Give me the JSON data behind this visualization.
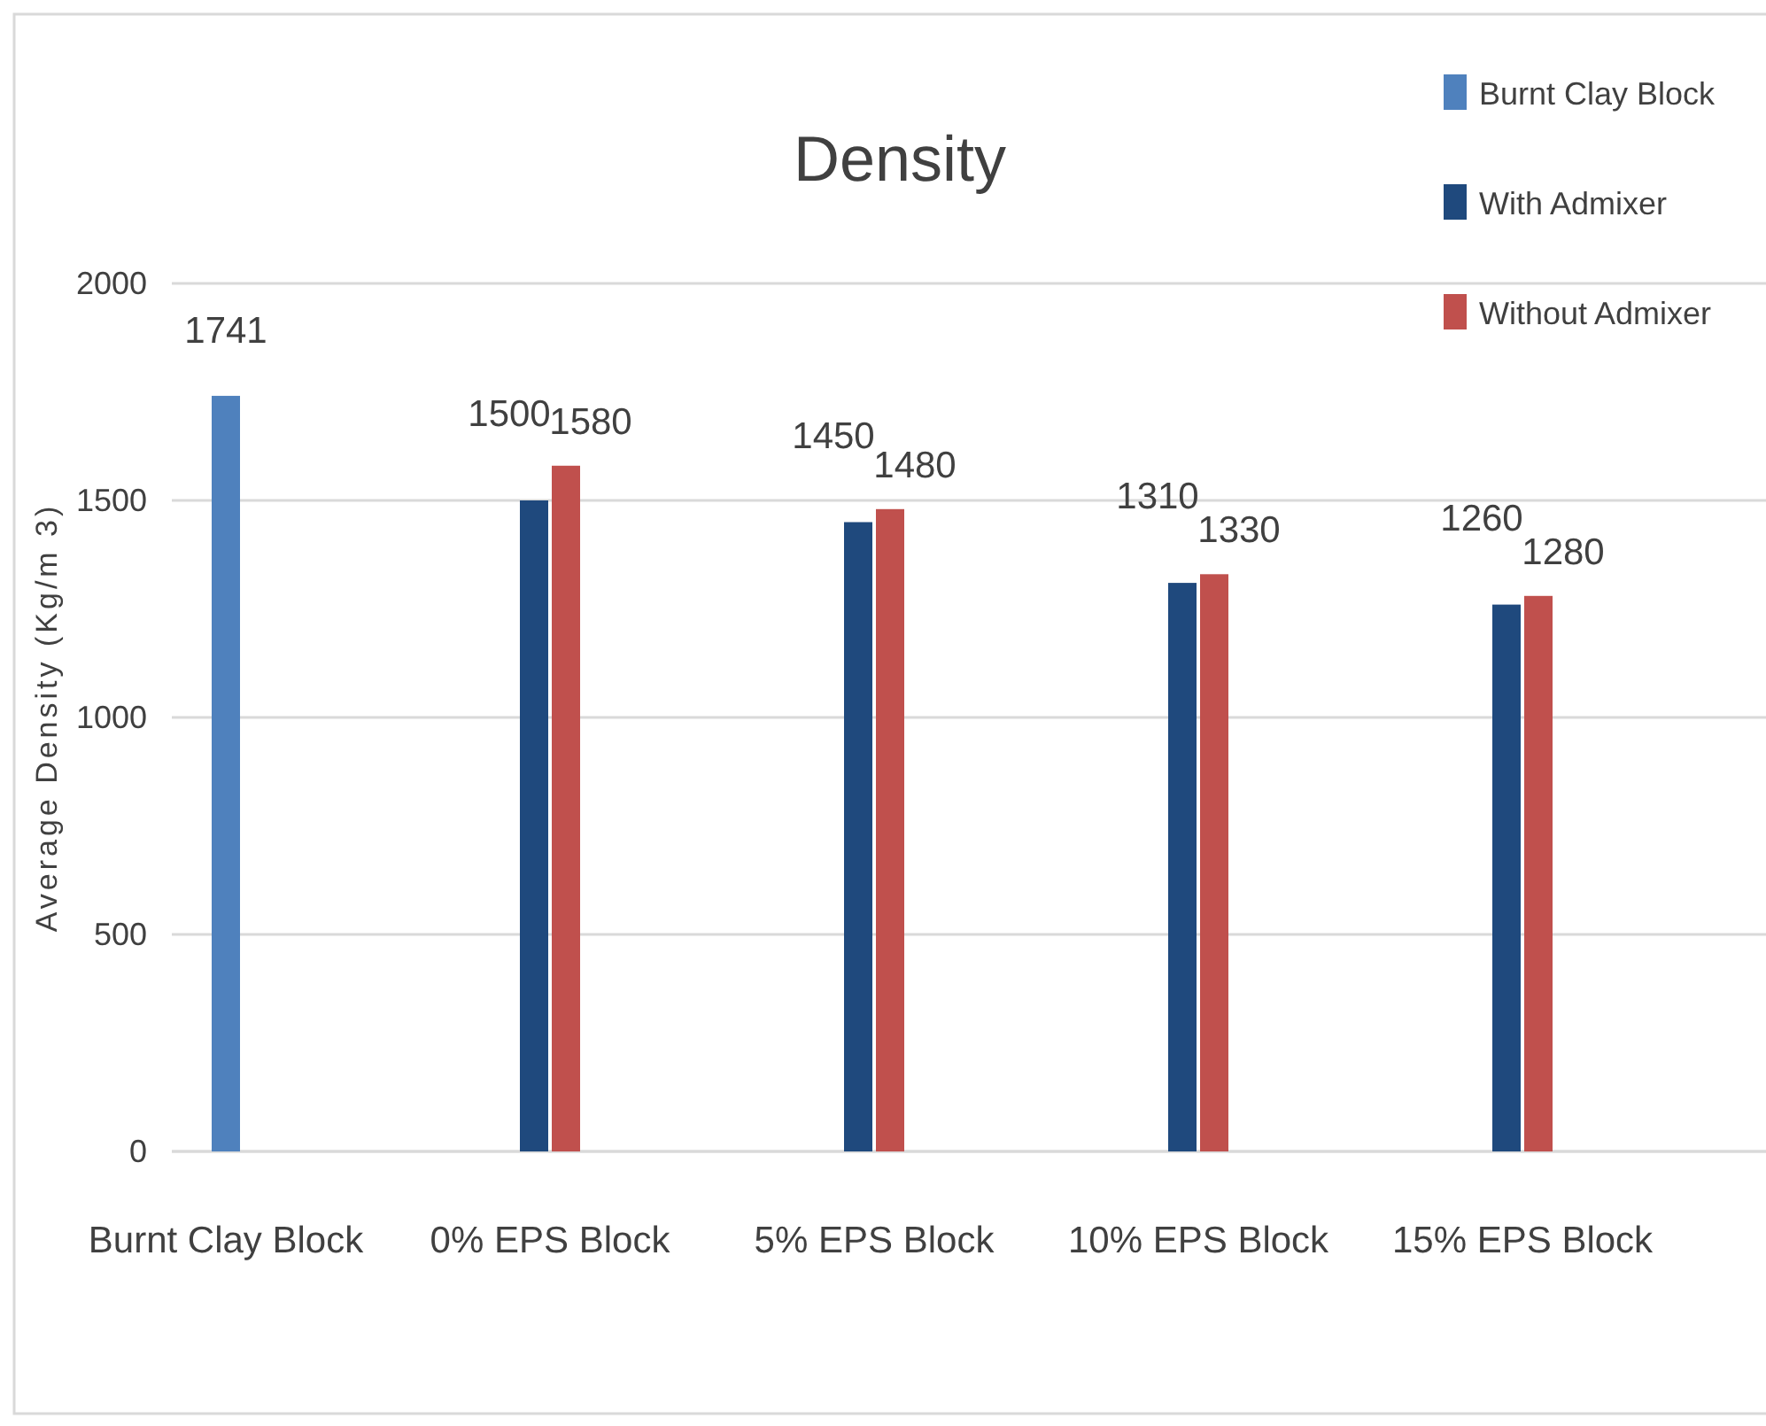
{
  "chart_data": {
    "type": "bar",
    "title": "Density",
    "ylabel": "Average Density (Kg/m 3)",
    "categories": [
      "Burnt Clay Block",
      "0% EPS Block",
      "5% EPS Block",
      "10% EPS Block",
      "15% EPS Block"
    ],
    "series": [
      {
        "name": "Burnt Clay Block",
        "color": "#4f81bd",
        "values": [
          1741,
          null,
          null,
          null,
          null
        ]
      },
      {
        "name": "With Admixer",
        "color": "#1f497d",
        "values": [
          null,
          1500,
          1450,
          1310,
          1260
        ]
      },
      {
        "name": "Without Admixer",
        "color": "#c0504d",
        "values": [
          null,
          1580,
          1480,
          1330,
          1280
        ]
      }
    ],
    "ylim": [
      0,
      2000
    ],
    "yticks": [
      0,
      500,
      1000,
      1500,
      2000
    ],
    "grid": "y",
    "legend": "top right",
    "data_labels": true
  }
}
